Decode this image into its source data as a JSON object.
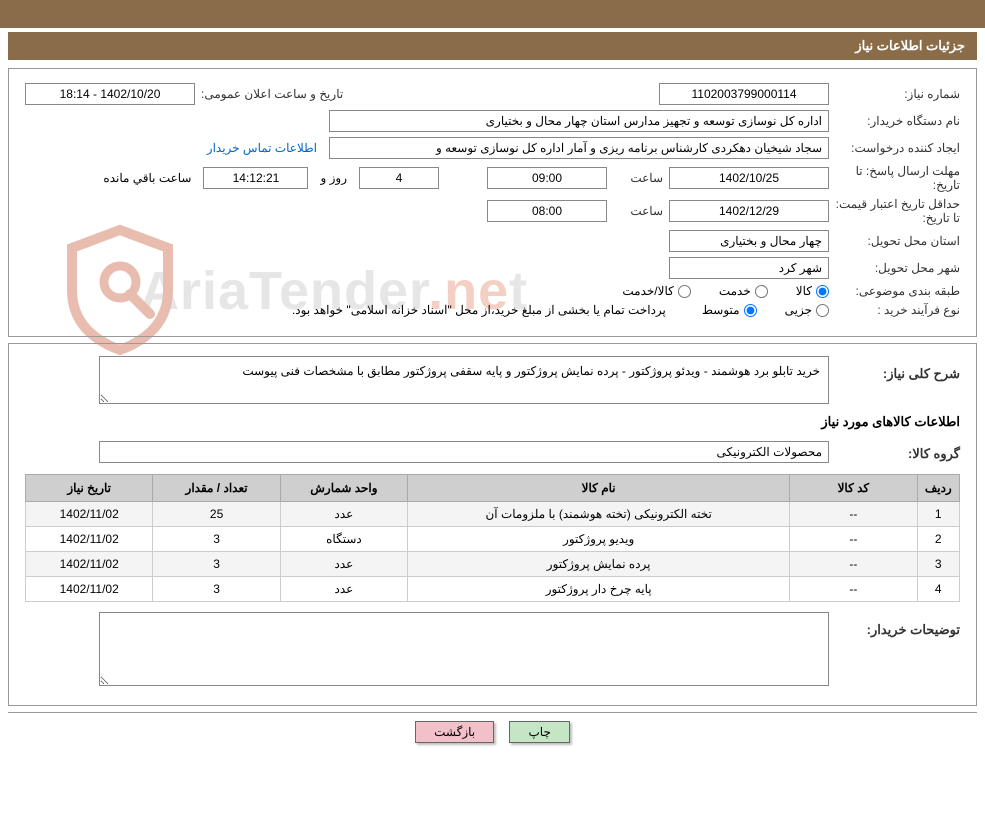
{
  "header_title": "جزئیات اطلاعات نیاز",
  "fields": {
    "need_number_label": "شماره نیاز:",
    "need_number": "1102003799000114",
    "announce_label": "تاریخ و ساعت اعلان عمومی:",
    "announce_value": "1402/10/20 - 18:14",
    "buyer_label": "نام دستگاه خریدار:",
    "buyer_value": "اداره کل نوسازی  توسعه و تجهیز مدارس استان چهار محال و بختیاری",
    "requester_label": "ایجاد کننده درخواست:",
    "requester_value": "سجاد شیخیان دهکردی کارشناس برنامه ریزی و آمار اداره کل نوسازی  توسعه و",
    "contact_link": "اطلاعات تماس خریدار",
    "deadline_label": "مهلت ارسال پاسخ: تا تاریخ:",
    "deadline_date": "1402/10/25",
    "deadline_hour_label": "ساعت",
    "deadline_hour": "09:00",
    "deadline_days": "4",
    "days_unit": "روز و",
    "countdown": "14:12:21",
    "countdown_unit": "ساعت باقي مانده",
    "validity_label": "حداقل تاریخ اعتبار قیمت: تا تاریخ:",
    "validity_date": "1402/12/29",
    "validity_hour_label": "ساعت",
    "validity_hour": "08:00",
    "province_label": "استان محل تحویل:",
    "province_value": "چهار محال و بختیاری",
    "city_label": "شهر محل تحویل:",
    "city_value": "شهر کرد",
    "category_label": "طبقه بندی موضوعی:",
    "cat_goods": "کالا",
    "cat_service": "خدمت",
    "cat_both": "کالا/خدمت",
    "proc_type_label": "نوع فرآیند خرید :",
    "proc_small": "جزیی",
    "proc_medium": "متوسط",
    "proc_note": "پرداخت تمام یا بخشی از مبلغ خرید،از محل \"اسناد خزانه اسلامی\" خواهد بود.",
    "need_desc_label": "شرح کلی نیاز:",
    "need_desc": "خرید تابلو برد هوشمند - ویدئو پروژکتور - پرده نمایش پروژکتور و پایه سقفی پروژکتور مطابق با مشخصات فنی پیوست",
    "items_title": "اطلاعات کالاهای مورد نیاز",
    "group_label": "گروه کالا:",
    "group_value": "محصولات الکترونیکی",
    "buyer_notes_label": "توضیحات خریدار:",
    "buyer_notes": ""
  },
  "table": {
    "headers": {
      "row": "ردیف",
      "code": "کد کالا",
      "name": "نام کالا",
      "unit": "واحد شمارش",
      "qty": "تعداد / مقدار",
      "date": "تاریخ نیاز"
    },
    "rows": [
      {
        "row": "1",
        "code": "--",
        "name": "تخته الکترونیکی (تخته هوشمند) با ملزومات آن",
        "unit": "عدد",
        "qty": "25",
        "date": "1402/11/02"
      },
      {
        "row": "2",
        "code": "--",
        "name": "ویدیو پروژکتور",
        "unit": "دستگاه",
        "qty": "3",
        "date": "1402/11/02"
      },
      {
        "row": "3",
        "code": "--",
        "name": "پرده نمایش پروژکتور",
        "unit": "عدد",
        "qty": "3",
        "date": "1402/11/02"
      },
      {
        "row": "4",
        "code": "--",
        "name": "پایه چرخ دار پروژکتور",
        "unit": "عدد",
        "qty": "3",
        "date": "1402/11/02"
      }
    ]
  },
  "buttons": {
    "print": "چاپ",
    "back": "بازگشت"
  },
  "watermark": {
    "text1": "AriaTender",
    "text2": ".ne",
    "text3": "t",
    "shield_color": "#e8bdb0"
  }
}
